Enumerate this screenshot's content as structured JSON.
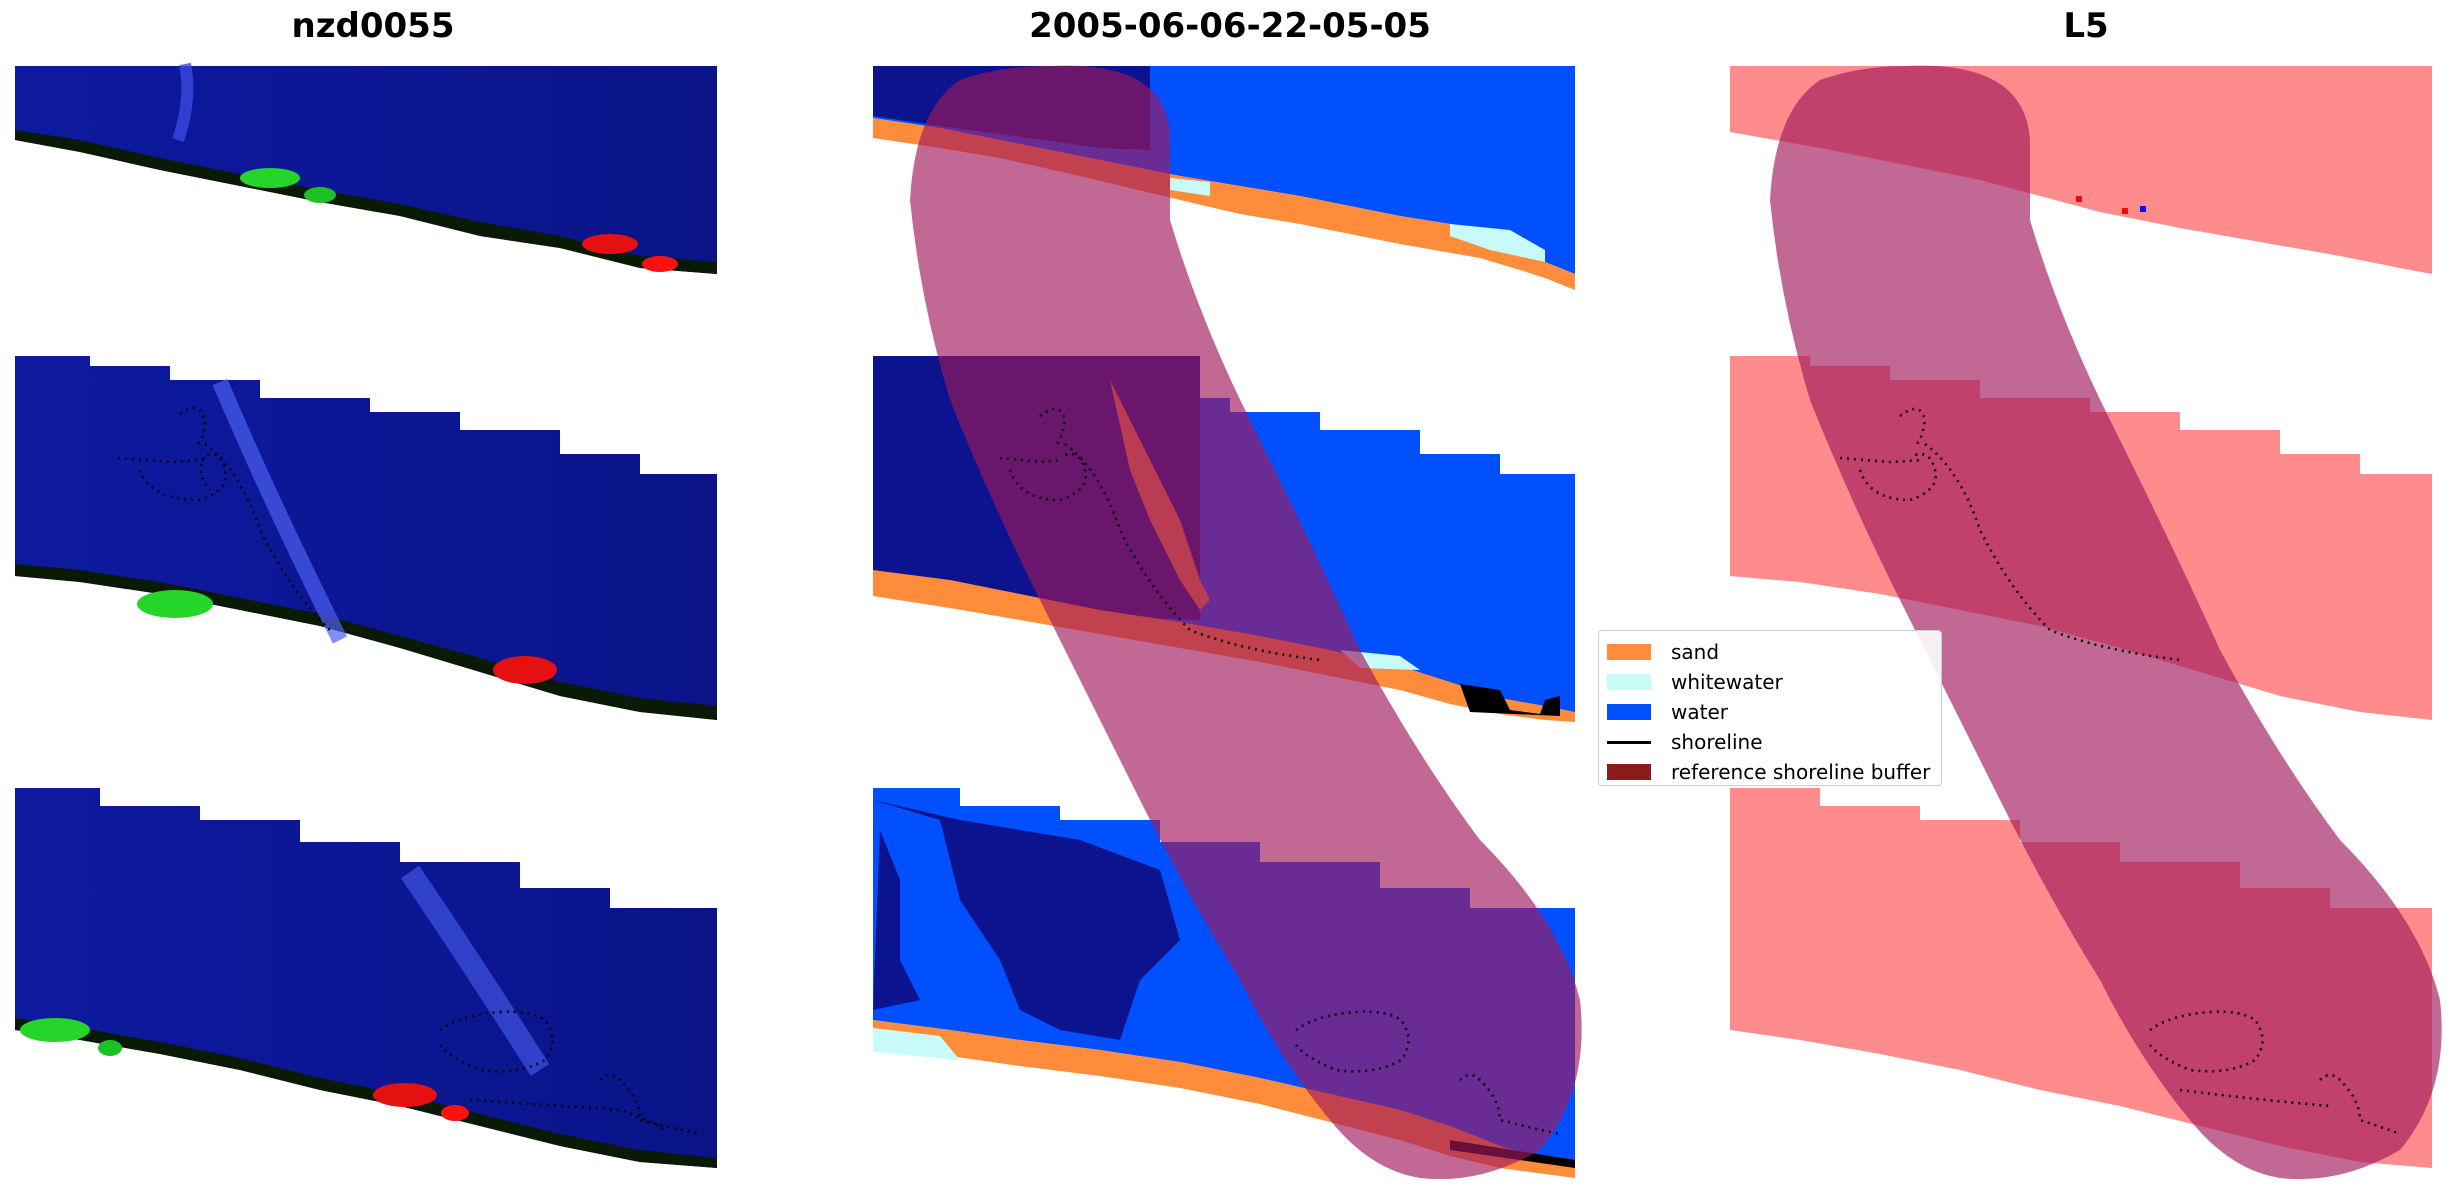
{
  "panels": [
    {
      "title": "nzd0055"
    },
    {
      "title": "2005-06-06-22-05-05"
    },
    {
      "title": "L5"
    }
  ],
  "legend": {
    "items": [
      {
        "label": "sand",
        "color": "#ff8c3a",
        "kind": "patch"
      },
      {
        "label": "whitewater",
        "color": "#c8fafa",
        "kind": "patch"
      },
      {
        "label": "water",
        "color": "#0050ff",
        "kind": "patch"
      },
      {
        "label": "shoreline",
        "color": "#000000",
        "kind": "line"
      },
      {
        "label": "reference shoreline buffer",
        "color": "#8b1a1a",
        "kind": "patch"
      }
    ]
  },
  "colors": {
    "rgb_water": "#0b1390",
    "classified_water_dark": "#0b138f",
    "classified_water": "#0050ff",
    "sand": "#ff8c3a",
    "whitewater": "#c8fafa",
    "buffer_overlay": "#a0185a",
    "mask_pink": "#ff8c8c"
  }
}
